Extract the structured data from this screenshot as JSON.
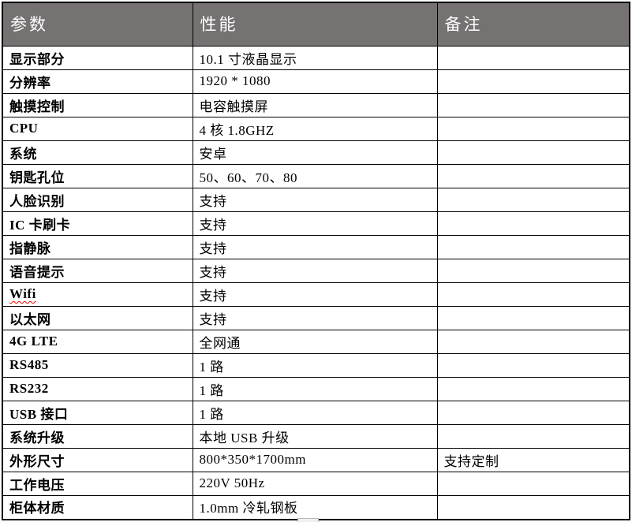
{
  "page": {
    "background": "#ffffff"
  },
  "table": {
    "header_bg": "#767272",
    "header_text_color": "#ffffff",
    "border_color": "#000000",
    "spellcheck_color": "#ff0000",
    "headers": [
      "参数",
      "性能",
      "备注"
    ],
    "rows": [
      {
        "param": "显示部分",
        "value": "10.1 寸液晶显示",
        "note": ""
      },
      {
        "param": "分辨率",
        "value": "1920 * 1080",
        "note": ""
      },
      {
        "param": "触摸控制",
        "value": "电容触摸屏",
        "note": ""
      },
      {
        "param": "CPU",
        "value": "4 核 1.8GHZ",
        "note": ""
      },
      {
        "param": "系统",
        "value": "安卓",
        "note": ""
      },
      {
        "param": "钥匙孔位",
        "value": "50、60、70、80",
        "note": ""
      },
      {
        "param": "人脸识别",
        "value": "支持",
        "note": ""
      },
      {
        "param": "IC 卡刷卡",
        "value": "支持",
        "note": ""
      },
      {
        "param": "指静脉",
        "value": "支持",
        "note": ""
      },
      {
        "param": "语音提示",
        "value": "支持",
        "note": ""
      },
      {
        "param": "Wifi",
        "value": "支持",
        "note": "",
        "misspelled": true
      },
      {
        "param": "以太网",
        "value": "支持",
        "note": ""
      },
      {
        "param": "4G LTE",
        "value": "全网通",
        "note": ""
      },
      {
        "param": "RS485",
        "value": "1 路",
        "note": ""
      },
      {
        "param": "RS232",
        "value": "1 路",
        "note": ""
      },
      {
        "param": "USB 接口",
        "value": "1 路",
        "note": ""
      },
      {
        "param": "系统升级",
        "value": "本地 USB 升级",
        "note": ""
      },
      {
        "param": "外形尺寸",
        "value": "800*350*1700mm",
        "note": "支持定制"
      },
      {
        "param": "工作电压",
        "value": "220V 50Hz",
        "note": ""
      },
      {
        "param": "柜体材质",
        "value": "1.0mm 冷轧钢板",
        "note": ""
      }
    ]
  }
}
